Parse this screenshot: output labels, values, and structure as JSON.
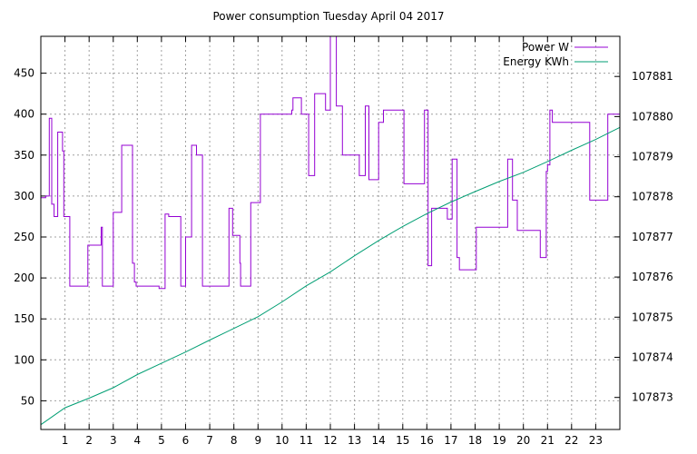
{
  "chart_data": {
    "type": "line",
    "title": "Power consumption Tuesday April 04 2017",
    "xlabel": "",
    "ylabel": "",
    "y2label": "",
    "xlim": [
      0,
      24
    ],
    "ylim": [
      15,
      495
    ],
    "y2lim": [
      107872.2,
      107882.0
    ],
    "x_ticks": [
      1,
      2,
      3,
      4,
      5,
      6,
      7,
      8,
      9,
      10,
      11,
      12,
      13,
      14,
      15,
      16,
      17,
      18,
      19,
      20,
      21,
      22,
      23
    ],
    "x_tick_labels": [
      "1",
      "2",
      "3",
      "4",
      "5",
      "6",
      "7",
      "8",
      "9",
      "10",
      "11",
      "12",
      "13",
      "14",
      "15",
      "16",
      "17",
      "18",
      "19",
      "20",
      "21",
      "22",
      "23"
    ],
    "y_ticks": [
      50,
      100,
      150,
      200,
      250,
      300,
      350,
      400,
      450
    ],
    "y_tick_labels": [
      "50",
      "100",
      "150",
      "200",
      "250",
      "300",
      "350",
      "400",
      "450"
    ],
    "y2_ticks": [
      107873,
      107874,
      107875,
      107876,
      107877,
      107878,
      107879,
      107880,
      107881
    ],
    "y2_tick_labels": [
      "107873",
      "107874",
      "107875",
      "107876",
      "107877",
      "107878",
      "107879",
      "107880",
      "107881"
    ],
    "grid": true,
    "legend_position": "top-right",
    "series": [
      {
        "name": "Power W",
        "axis": "left",
        "color": "#9400d3",
        "step": true,
        "x": [
          0,
          0.2,
          0.35,
          0.45,
          0.55,
          0.7,
          0.9,
          0.95,
          1.2,
          1.4,
          1.95,
          2.5,
          2.55,
          3.0,
          3.35,
          3.8,
          3.88,
          3.95,
          4.7,
          4.9,
          5.15,
          5.3,
          5.8,
          6.0,
          6.25,
          6.45,
          6.7,
          7.6,
          7.8,
          7.95,
          8.25,
          8.28,
          8.7,
          9.0,
          9.1,
          10.05,
          10.4,
          10.45,
          10.8,
          11.1,
          11.35,
          11.55,
          11.8,
          12.0,
          12.25,
          12.5,
          13.0,
          13.2,
          13.45,
          13.6,
          14.0,
          14.2,
          14.85,
          15.05,
          15.5,
          15.9,
          16.05,
          16.2,
          16.75,
          16.85,
          17.05,
          17.25,
          17.35,
          17.5,
          18.05,
          18.2,
          18.65,
          19.0,
          19.35,
          19.55,
          19.75,
          20.5,
          20.7,
          20.95,
          21.0,
          21.1,
          21.2,
          21.55,
          22.0,
          22.75,
          22.95,
          23.3,
          23.5,
          23.7,
          23.9,
          24.0
        ],
        "y": [
          298,
          300,
          395,
          290,
          275,
          378,
          355,
          275,
          190,
          190,
          240,
          262,
          190,
          280,
          362,
          218,
          195,
          190,
          190,
          187,
          278,
          275,
          190,
          250,
          362,
          350,
          190,
          190,
          285,
          252,
          218,
          190,
          292,
          292,
          400,
          400,
          405,
          420,
          400,
          325,
          425,
          425,
          405,
          495,
          410,
          350,
          350,
          325,
          410,
          320,
          390,
          405,
          405,
          315,
          315,
          405,
          215,
          285,
          285,
          272,
          345,
          225,
          210,
          210,
          262,
          262,
          262,
          262,
          345,
          295,
          258,
          258,
          225,
          330,
          338,
          405,
          390,
          390,
          390,
          295,
          295,
          295,
          400,
          400,
          400,
          385
        ]
      },
      {
        "name": "Energy KWh",
        "axis": "right",
        "color": "#009e73",
        "step": false,
        "x": [
          0,
          1,
          2,
          3,
          4,
          5,
          6,
          7,
          8,
          9,
          10,
          11,
          12,
          13,
          14,
          15,
          16,
          17,
          18,
          19,
          20,
          21,
          22,
          23,
          24
        ],
        "y": [
          107872.32,
          107872.74,
          107872.98,
          107873.24,
          107873.57,
          107873.85,
          107874.13,
          107874.43,
          107874.72,
          107875.01,
          107875.38,
          107875.78,
          107876.13,
          107876.53,
          107876.91,
          107877.26,
          107877.58,
          107877.87,
          107878.13,
          107878.38,
          107878.61,
          107878.88,
          107879.16,
          107879.43,
          107879.73
        ]
      }
    ]
  }
}
